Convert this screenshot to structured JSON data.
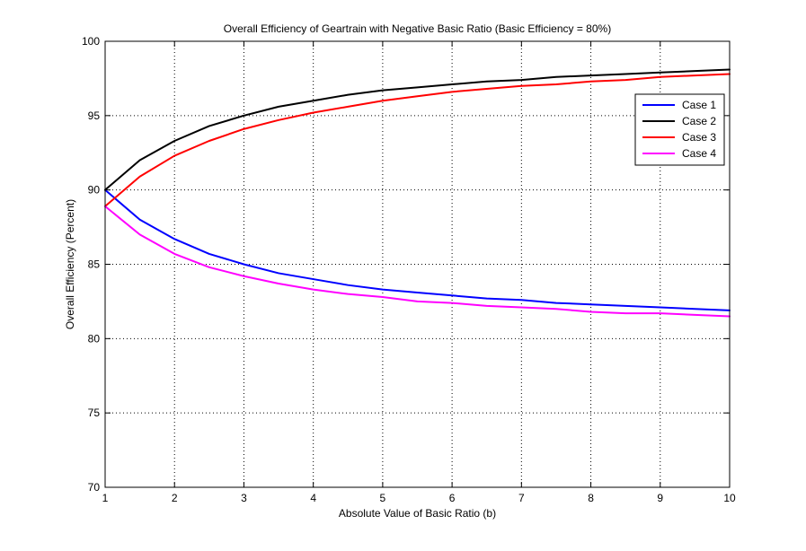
{
  "chart_data": {
    "type": "line",
    "title": "Overall Efficiency of Geartrain with Negative Basic Ratio (Basic Efficiency = 80%)",
    "xlabel": "Absolute Value of Basic Ratio (b)",
    "ylabel": "Overall Efficiency (Percent)",
    "xlim": [
      1,
      10
    ],
    "ylim": [
      70,
      100
    ],
    "xticks": [
      1,
      2,
      3,
      4,
      5,
      6,
      7,
      8,
      9,
      10
    ],
    "yticks": [
      70,
      75,
      80,
      85,
      90,
      95,
      100
    ],
    "grid": true,
    "legend_position": "top-right",
    "x": [
      1,
      1.5,
      2,
      2.5,
      3,
      3.5,
      4,
      4.5,
      5,
      5.5,
      6,
      6.5,
      7,
      7.5,
      8,
      8.5,
      9,
      9.5,
      10
    ],
    "series": [
      {
        "name": "Case 1",
        "color": "#0000ff",
        "values": [
          90.0,
          88.0,
          86.7,
          85.7,
          85.0,
          84.4,
          84.0,
          83.6,
          83.3,
          83.1,
          82.9,
          82.7,
          82.6,
          82.4,
          82.3,
          82.2,
          82.1,
          82.0,
          81.9
        ]
      },
      {
        "name": "Case 2",
        "color": "#000000",
        "values": [
          90.0,
          92.0,
          93.3,
          94.3,
          95.0,
          95.6,
          96.0,
          96.4,
          96.7,
          96.9,
          97.1,
          97.3,
          97.4,
          97.6,
          97.7,
          97.8,
          97.9,
          98.0,
          98.1
        ]
      },
      {
        "name": "Case 3",
        "color": "#ff0000",
        "values": [
          88.9,
          90.9,
          92.3,
          93.3,
          94.1,
          94.7,
          95.2,
          95.6,
          96.0,
          96.3,
          96.6,
          96.8,
          97.0,
          97.1,
          97.3,
          97.4,
          97.6,
          97.7,
          97.8
        ]
      },
      {
        "name": "Case 4",
        "color": "#ff00ff",
        "values": [
          88.9,
          87.0,
          85.7,
          84.8,
          84.2,
          83.7,
          83.3,
          83.0,
          82.8,
          82.5,
          82.4,
          82.2,
          82.1,
          82.0,
          81.8,
          81.7,
          81.7,
          81.6,
          81.5
        ]
      }
    ]
  }
}
